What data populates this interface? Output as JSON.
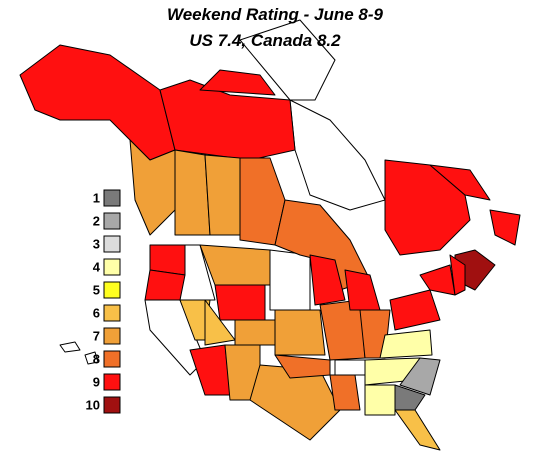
{
  "title": "Weekend Rating - June 8-9",
  "subtitle": "US 7.4, Canada 8.2",
  "legend": {
    "items": [
      {
        "rating": 1,
        "color": "#7a7a7a"
      },
      {
        "rating": 2,
        "color": "#a8a8a8"
      },
      {
        "rating": 3,
        "color": "#dcdcdc"
      },
      {
        "rating": 4,
        "color": "#ffffa8"
      },
      {
        "rating": 5,
        "color": "#ffff20"
      },
      {
        "rating": 6,
        "color": "#f8c048"
      },
      {
        "rating": 7,
        "color": "#f0a038"
      },
      {
        "rating": 8,
        "color": "#f07028"
      },
      {
        "rating": 9,
        "color": "#ff1010"
      },
      {
        "rating": 10,
        "color": "#a01010"
      }
    ]
  },
  "regions": [
    9,
    9,
    9,
    7,
    7,
    7,
    8,
    8,
    9,
    9,
    10,
    9,
    9,
    9,
    6,
    7,
    9,
    6,
    9,
    7,
    7,
    7,
    7,
    8,
    9,
    8,
    8,
    9,
    8,
    9,
    9,
    9,
    4,
    4,
    2,
    1,
    4,
    6
  ]
}
